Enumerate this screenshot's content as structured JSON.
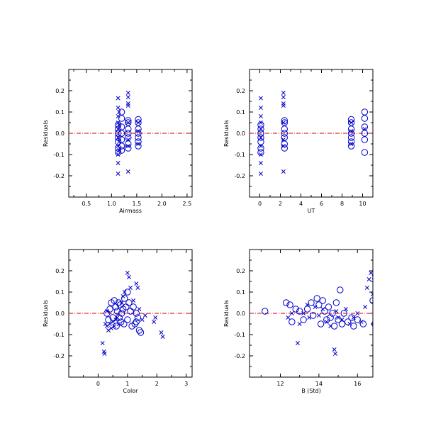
{
  "colors": {
    "marker": "#0000cc",
    "zero_line": "#cc0000",
    "axis": "#000000"
  },
  "chart_data": [
    {
      "type": "scatter",
      "xlabel": "Airmass",
      "ylabel": "Residuals",
      "xlim": [
        0.15,
        2.6
      ],
      "ylim": [
        -0.3,
        0.3
      ],
      "xticks": [
        0.5,
        1.0,
        1.5,
        2.0,
        2.5
      ],
      "xtick_labels": [
        "0.5",
        "1.0",
        "1.5",
        "2.0",
        "2.5"
      ],
      "yticks": [
        -0.2,
        -0.1,
        0.0,
        0.1,
        0.2
      ],
      "ytick_labels": [
        "-0.2",
        "-0.1",
        "0.0",
        "0.1",
        "0.2"
      ],
      "zero_line": 0.0,
      "series": [
        {
          "marker": "x",
          "points": [
            [
              1.13,
              0.165
            ],
            [
              1.13,
              0.12
            ],
            [
              1.13,
              0.08
            ],
            [
              1.13,
              0.05
            ],
            [
              1.13,
              0.02
            ],
            [
              1.13,
              -0.02
            ],
            [
              1.13,
              -0.06
            ],
            [
              1.13,
              -0.1
            ],
            [
              1.13,
              -0.14
            ],
            [
              1.13,
              -0.19
            ],
            [
              1.15,
              0.1
            ],
            [
              1.15,
              0.04
            ],
            [
              1.15,
              -0.04
            ],
            [
              1.15,
              -0.08
            ],
            [
              1.33,
              0.19
            ],
            [
              1.33,
              0.17
            ],
            [
              1.33,
              0.14
            ],
            [
              1.33,
              0.13
            ],
            [
              1.33,
              0.05
            ],
            [
              1.33,
              -0.03
            ],
            [
              1.33,
              -0.06
            ],
            [
              1.33,
              -0.18
            ],
            [
              1.53,
              0.05
            ],
            [
              1.53,
              0.01
            ],
            [
              1.53,
              -0.05
            ]
          ]
        },
        {
          "marker": "o",
          "points": [
            [
              1.13,
              0.04
            ],
            [
              1.13,
              0.02
            ],
            [
              1.13,
              0.0
            ],
            [
              1.13,
              -0.02
            ],
            [
              1.13,
              -0.04
            ],
            [
              1.13,
              -0.07
            ],
            [
              1.13,
              -0.09
            ],
            [
              1.2,
              0.1
            ],
            [
              1.2,
              0.07
            ],
            [
              1.2,
              0.03
            ],
            [
              1.2,
              0.0
            ],
            [
              1.2,
              -0.03
            ],
            [
              1.2,
              -0.06
            ],
            [
              1.2,
              -0.08
            ],
            [
              1.33,
              0.06
            ],
            [
              1.33,
              0.05
            ],
            [
              1.33,
              0.02
            ],
            [
              1.33,
              0.0
            ],
            [
              1.33,
              -0.02
            ],
            [
              1.33,
              -0.05
            ],
            [
              1.33,
              -0.07
            ],
            [
              1.53,
              0.065
            ],
            [
              1.53,
              0.05
            ],
            [
              1.53,
              0.02
            ],
            [
              1.53,
              0.0
            ],
            [
              1.53,
              -0.02
            ],
            [
              1.53,
              -0.04
            ],
            [
              1.53,
              -0.06
            ]
          ]
        }
      ]
    },
    {
      "type": "scatter",
      "xlabel": "UT",
      "ylabel": "Residuals",
      "xlim": [
        -1,
        11
      ],
      "ylim": [
        -0.3,
        0.3
      ],
      "xticks": [
        0,
        2,
        4,
        6,
        8,
        10
      ],
      "xtick_labels": [
        "0",
        "2",
        "4",
        "6",
        "8",
        "10"
      ],
      "yticks": [
        -0.2,
        -0.1,
        0.0,
        0.1,
        0.2
      ],
      "ytick_labels": [
        "-0.2",
        "-0.1",
        "0.0",
        "0.1",
        "0.2"
      ],
      "zero_line": 0.0,
      "series": [
        {
          "marker": "x",
          "points": [
            [
              0.1,
              0.165
            ],
            [
              0.1,
              0.12
            ],
            [
              0.1,
              0.08
            ],
            [
              0.1,
              0.05
            ],
            [
              0.1,
              0.02
            ],
            [
              0.1,
              -0.02
            ],
            [
              0.1,
              -0.06
            ],
            [
              0.1,
              -0.1
            ],
            [
              0.1,
              -0.14
            ],
            [
              0.1,
              -0.19
            ],
            [
              2.3,
              0.19
            ],
            [
              2.3,
              0.17
            ],
            [
              2.3,
              0.14
            ],
            [
              2.3,
              0.13
            ],
            [
              2.3,
              0.05
            ],
            [
              2.3,
              -0.03
            ],
            [
              2.3,
              -0.06
            ],
            [
              2.3,
              -0.18
            ],
            [
              8.9,
              0.05
            ],
            [
              8.9,
              0.01
            ],
            [
              8.9,
              -0.05
            ],
            [
              10.2,
              0.02
            ]
          ]
        },
        {
          "marker": "o",
          "points": [
            [
              0.1,
              0.04
            ],
            [
              0.1,
              0.02
            ],
            [
              0.1,
              0.0
            ],
            [
              0.1,
              -0.02
            ],
            [
              0.1,
              -0.04
            ],
            [
              0.1,
              -0.07
            ],
            [
              0.1,
              -0.09
            ],
            [
              2.4,
              0.06
            ],
            [
              2.4,
              0.05
            ],
            [
              2.4,
              0.02
            ],
            [
              2.4,
              0.0
            ],
            [
              2.4,
              -0.02
            ],
            [
              2.4,
              -0.05
            ],
            [
              2.4,
              -0.07
            ],
            [
              8.9,
              0.065
            ],
            [
              8.9,
              0.05
            ],
            [
              8.9,
              0.02
            ],
            [
              8.9,
              0.0
            ],
            [
              8.9,
              -0.02
            ],
            [
              8.9,
              -0.04
            ],
            [
              8.9,
              -0.06
            ],
            [
              10.2,
              0.1
            ],
            [
              10.2,
              0.07
            ],
            [
              10.2,
              0.03
            ],
            [
              10.2,
              0.0
            ],
            [
              10.2,
              -0.03
            ],
            [
              10.2,
              -0.09
            ]
          ]
        }
      ]
    },
    {
      "type": "scatter",
      "xlabel": "Color",
      "ylabel": "Residuals",
      "xlim": [
        -1,
        3.2
      ],
      "ylim": [
        -0.3,
        0.3
      ],
      "xticks": [
        0,
        1,
        2,
        3
      ],
      "xtick_labels": [
        "0",
        "1",
        "2",
        "3"
      ],
      "yticks": [
        -0.2,
        -0.1,
        0.0,
        0.1,
        0.2
      ],
      "ytick_labels": [
        "-0.2",
        "-0.1",
        "0.0",
        "0.1",
        "0.2"
      ],
      "zero_line": 0.0,
      "series": [
        {
          "marker": "x",
          "points": [
            [
              0.15,
              -0.14
            ],
            [
              0.2,
              -0.18
            ],
            [
              0.22,
              -0.19
            ],
            [
              0.25,
              -0.05
            ],
            [
              0.3,
              -0.06
            ],
            [
              0.35,
              -0.08
            ],
            [
              0.4,
              -0.05
            ],
            [
              0.45,
              -0.07
            ],
            [
              0.5,
              -0.04
            ],
            [
              0.55,
              -0.06
            ],
            [
              0.6,
              -0.03
            ],
            [
              0.65,
              -0.02
            ],
            [
              0.7,
              -0.05
            ],
            [
              0.8,
              0.05
            ],
            [
              0.85,
              0.08
            ],
            [
              0.9,
              0.1
            ],
            [
              1.0,
              0.19
            ],
            [
              1.05,
              0.17
            ],
            [
              1.1,
              0.12
            ],
            [
              1.3,
              0.14
            ],
            [
              1.35,
              0.12
            ],
            [
              1.4,
              0.02
            ],
            [
              1.5,
              -0.03
            ],
            [
              1.6,
              -0.01
            ],
            [
              1.9,
              -0.04
            ],
            [
              1.95,
              -0.02
            ],
            [
              2.15,
              -0.09
            ],
            [
              2.2,
              -0.11
            ],
            [
              0.3,
              0.01
            ],
            [
              1.2,
              0.06
            ]
          ]
        },
        {
          "marker": "o",
          "points": [
            [
              0.3,
              0.0
            ],
            [
              0.35,
              -0.03
            ],
            [
              0.4,
              0.02
            ],
            [
              0.45,
              0.05
            ],
            [
              0.5,
              -0.02
            ],
            [
              0.55,
              0.06
            ],
            [
              0.6,
              0.03
            ],
            [
              0.62,
              -0.06
            ],
            [
              0.65,
              0.01
            ],
            [
              0.7,
              0.05
            ],
            [
              0.72,
              -0.02
            ],
            [
              0.75,
              0.04
            ],
            [
              0.78,
              -0.04
            ],
            [
              0.8,
              0.0
            ],
            [
              0.85,
              0.02
            ],
            [
              0.88,
              -0.05
            ],
            [
              0.9,
              0.07
            ],
            [
              0.95,
              0.03
            ],
            [
              1.0,
              -0.03
            ],
            [
              1.05,
              0.05
            ],
            [
              1.1,
              0.01
            ],
            [
              1.15,
              -0.06
            ],
            [
              1.2,
              0.03
            ],
            [
              1.25,
              -0.05
            ],
            [
              1.3,
              0.0
            ],
            [
              1.35,
              -0.02
            ],
            [
              1.4,
              -0.08
            ],
            [
              1.45,
              -0.09
            ],
            [
              1.0,
              0.1
            ],
            [
              1.3,
              -0.04
            ]
          ]
        }
      ]
    },
    {
      "type": "scatter",
      "xlabel": "B (Std)",
      "ylabel": "Residuals",
      "xlim": [
        10.4,
        16.8
      ],
      "ylim": [
        -0.3,
        0.3
      ],
      "xticks": [
        12,
        14,
        16
      ],
      "xtick_labels": [
        "12",
        "14",
        "16"
      ],
      "yticks": [
        -0.2,
        -0.1,
        0.0,
        0.1,
        0.2
      ],
      "ytick_labels": [
        "-0.2",
        "-0.1",
        "0.0",
        "0.1",
        "0.2"
      ],
      "zero_line": 0.0,
      "series": [
        {
          "marker": "x",
          "points": [
            [
              12.4,
              -0.02
            ],
            [
              12.6,
              0.0
            ],
            [
              12.9,
              -0.14
            ],
            [
              13.0,
              -0.05
            ],
            [
              13.2,
              0.0
            ],
            [
              13.4,
              0.04
            ],
            [
              13.5,
              -0.02
            ],
            [
              13.8,
              0.03
            ],
            [
              14.0,
              -0.01
            ],
            [
              14.2,
              0.02
            ],
            [
              14.4,
              -0.04
            ],
            [
              14.6,
              -0.06
            ],
            [
              14.8,
              -0.17
            ],
            [
              14.85,
              -0.19
            ],
            [
              14.9,
              0.01
            ],
            [
              15.2,
              -0.03
            ],
            [
              15.4,
              0.02
            ],
            [
              15.6,
              -0.05
            ],
            [
              15.8,
              -0.02
            ],
            [
              16.0,
              0.0
            ],
            [
              16.2,
              -0.04
            ],
            [
              16.4,
              0.03
            ],
            [
              16.5,
              0.12
            ],
            [
              16.6,
              0.16
            ],
            [
              16.7,
              0.19
            ],
            [
              16.8,
              0.09
            ],
            [
              16.85,
              0.17
            ],
            [
              17.0,
              0.14
            ],
            [
              17.2,
              0.13
            ],
            [
              15.0,
              -0.02
            ]
          ]
        },
        {
          "marker": "o",
          "points": [
            [
              11.2,
              0.01
            ],
            [
              12.3,
              0.05
            ],
            [
              12.5,
              0.04
            ],
            [
              12.6,
              -0.04
            ],
            [
              12.8,
              0.02
            ],
            [
              13.0,
              0.01
            ],
            [
              13.2,
              -0.03
            ],
            [
              13.4,
              0.02
            ],
            [
              13.6,
              0.05
            ],
            [
              13.7,
              -0.01
            ],
            [
              13.9,
              0.07
            ],
            [
              14.0,
              0.04
            ],
            [
              14.1,
              -0.05
            ],
            [
              14.2,
              0.06
            ],
            [
              14.3,
              0.01
            ],
            [
              14.4,
              -0.03
            ],
            [
              14.5,
              0.03
            ],
            [
              14.6,
              -0.02
            ],
            [
              14.7,
              0.0
            ],
            [
              14.8,
              -0.06
            ],
            [
              14.9,
              0.05
            ],
            [
              15.0,
              -0.03
            ],
            [
              15.1,
              0.11
            ],
            [
              15.2,
              -0.05
            ],
            [
              15.3,
              0.0
            ],
            [
              15.5,
              -0.04
            ],
            [
              15.7,
              -0.02
            ],
            [
              15.8,
              -0.06
            ],
            [
              16.0,
              -0.03
            ],
            [
              16.3,
              -0.05
            ],
            [
              16.8,
              0.06
            ],
            [
              16.9,
              -0.05
            ]
          ]
        }
      ]
    }
  ]
}
